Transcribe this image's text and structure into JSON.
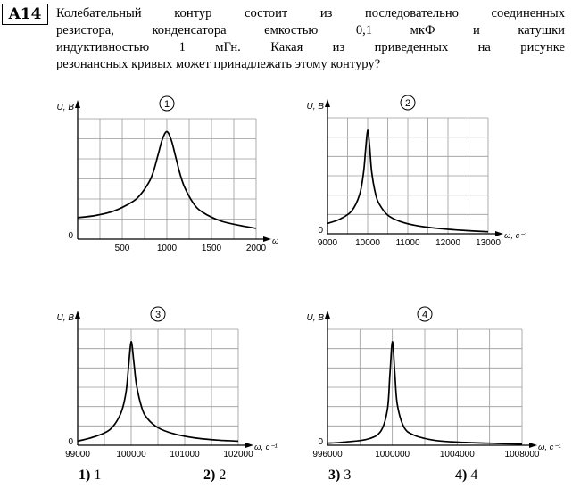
{
  "question": {
    "number": "A14",
    "lines": [
      "Колебательный контур состоит из последовательно соединенных",
      "резистора,  конденсатора  емкостью  0,1 мкФ  и  катушки",
      "индуктивностью  1 мГн.  Какая  из  приведенных  на  рисунке",
      "резонансных кривых может принадлежать этому контуру?"
    ]
  },
  "chart_data": [
    {
      "type": "line",
      "badge": "1",
      "ylabel": "U, В",
      "xlabel": "ω, с⁻¹",
      "origin_label": "0",
      "xlim": [
        0,
        2000
      ],
      "xticks": [
        "500",
        "1000",
        "1500",
        "2000"
      ],
      "peak_x": 1000,
      "x": [
        0,
        200,
        400,
        600,
        700,
        800,
        850,
        900,
        950,
        1000,
        1050,
        1100,
        1150,
        1200,
        1300,
        1400,
        1600,
        1800,
        2000
      ],
      "y": [
        0.2,
        0.22,
        0.26,
        0.34,
        0.41,
        0.53,
        0.63,
        0.78,
        0.93,
        1.0,
        0.92,
        0.76,
        0.6,
        0.48,
        0.33,
        0.25,
        0.17,
        0.13,
        0.1
      ],
      "ylim": [
        0,
        1.12
      ]
    },
    {
      "type": "line",
      "badge": "2",
      "ylabel": "U, В",
      "xlabel": "ω, с⁻¹",
      "origin_label": "0",
      "xlim": [
        9000,
        13000
      ],
      "xticks": [
        "9000",
        "10000",
        "11000",
        "12000",
        "13000"
      ],
      "peak_x": 10000,
      "x": [
        9000,
        9300,
        9600,
        9800,
        9900,
        9950,
        10000,
        10050,
        10100,
        10200,
        10300,
        10500,
        10800,
        11200,
        11800,
        12500,
        13000
      ],
      "y": [
        0.1,
        0.14,
        0.22,
        0.38,
        0.6,
        0.82,
        1.0,
        0.84,
        0.6,
        0.38,
        0.28,
        0.18,
        0.12,
        0.08,
        0.05,
        0.03,
        0.02
      ],
      "ylim": [
        0,
        1.12
      ]
    },
    {
      "type": "line",
      "badge": "3",
      "ylabel": "U, В",
      "xlabel": "ω, с⁻¹",
      "origin_label": "0",
      "xlim": [
        99000,
        102000
      ],
      "xticks": [
        "99000",
        "100000",
        "101000",
        "102000"
      ],
      "peak_x": 100000,
      "x": [
        99000,
        99300,
        99600,
        99800,
        99900,
        99950,
        100000,
        100050,
        100100,
        100200,
        100300,
        100500,
        100800,
        101200,
        101600,
        102000
      ],
      "y": [
        0.04,
        0.08,
        0.15,
        0.3,
        0.5,
        0.75,
        1.0,
        0.8,
        0.58,
        0.36,
        0.26,
        0.17,
        0.11,
        0.07,
        0.05,
        0.04
      ],
      "ylim": [
        0,
        1.12
      ]
    },
    {
      "type": "line",
      "badge": "4",
      "ylabel": "U, В",
      "xlabel": "ω, с⁻¹",
      "origin_label": "0",
      "xlim": [
        996000,
        1008000
      ],
      "xticks": [
        "996000",
        "1000000",
        "1004000",
        "1008000"
      ],
      "xticks_note": "first tick printed as shown",
      "tick_labels_raw": [
        "996000",
        "1000000",
        "1004000",
        "1008000"
      ],
      "peak_x": 1000000,
      "x": [
        996000,
        997000,
        998500,
        999300,
        999700,
        999850,
        1000000,
        1000150,
        1000300,
        1000700,
        1001300,
        1002500,
        1004000,
        1006000,
        1008000
      ],
      "y": [
        0.02,
        0.03,
        0.06,
        0.14,
        0.35,
        0.68,
        1.0,
        0.7,
        0.4,
        0.18,
        0.1,
        0.05,
        0.03,
        0.02,
        0.01
      ],
      "ylim": [
        0,
        1.12
      ]
    }
  ],
  "answers": [
    {
      "num": "1)",
      "val": "1"
    },
    {
      "num": "2)",
      "val": "2"
    },
    {
      "num": "3)",
      "val": "3"
    },
    {
      "num": "4)",
      "val": "4"
    }
  ]
}
